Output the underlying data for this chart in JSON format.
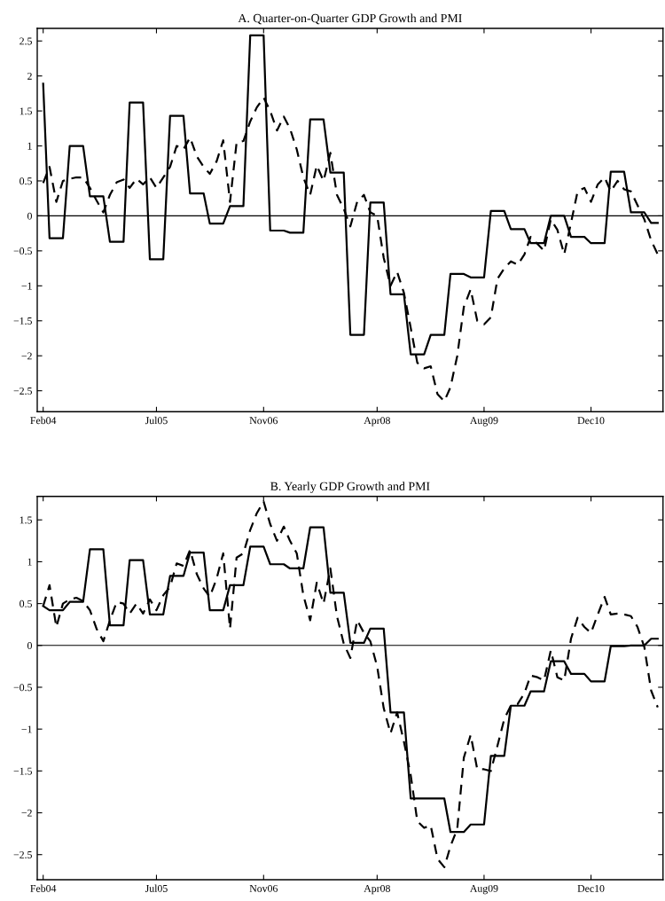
{
  "chart_data": [
    {
      "type": "line",
      "title": "A. Quarter-on-Quarter GDP Growth and PMI",
      "x": [
        "2004-02",
        "2004-03",
        "2004-04",
        "2004-05",
        "2004-06",
        "2004-07",
        "2004-08",
        "2004-09",
        "2004-10",
        "2004-11",
        "2004-12",
        "2005-01",
        "2005-02",
        "2005-03",
        "2005-04",
        "2005-05",
        "2005-06",
        "2005-07",
        "2005-08",
        "2005-09",
        "2005-10",
        "2005-11",
        "2005-12",
        "2006-01",
        "2006-02",
        "2006-03",
        "2006-04",
        "2006-05",
        "2006-06",
        "2006-07",
        "2006-08",
        "2006-09",
        "2006-10",
        "2006-11",
        "2006-12",
        "2007-01",
        "2007-02",
        "2007-03",
        "2007-04",
        "2007-05",
        "2007-06",
        "2007-07",
        "2007-08",
        "2007-09",
        "2007-10",
        "2007-11",
        "2007-12",
        "2008-01",
        "2008-02",
        "2008-03",
        "2008-04",
        "2008-05",
        "2008-06",
        "2008-07",
        "2008-08",
        "2008-09",
        "2008-10",
        "2008-11",
        "2008-12",
        "2009-01",
        "2009-02",
        "2009-03",
        "2009-04",
        "2009-05",
        "2009-06",
        "2009-07",
        "2009-08",
        "2009-09",
        "2009-10",
        "2009-11",
        "2009-12",
        "2010-01",
        "2010-02",
        "2010-03",
        "2010-04",
        "2010-05",
        "2010-06",
        "2010-07",
        "2010-08",
        "2010-09",
        "2010-10",
        "2010-11",
        "2010-12",
        "2011-01",
        "2011-02",
        "2011-03",
        "2011-04",
        "2011-05",
        "2011-06",
        "2011-07",
        "2011-08",
        "2011-09",
        "2011-10"
      ],
      "series": [
        {
          "color": "#000000",
          "line_style": "solid",
          "values": [
            1.89,
            -0.32,
            -0.32,
            -0.32,
            1.0,
            1.0,
            1.0,
            0.28,
            0.28,
            0.28,
            -0.37,
            -0.37,
            -0.37,
            1.62,
            1.62,
            1.62,
            -0.62,
            -0.62,
            -0.62,
            1.43,
            1.43,
            1.43,
            0.32,
            0.32,
            0.32,
            -0.11,
            -0.11,
            -0.11,
            0.14,
            0.14,
            0.14,
            2.58,
            2.58,
            2.58,
            -0.21,
            -0.21,
            -0.21,
            -0.24,
            -0.24,
            -0.24,
            1.38,
            1.38,
            1.38,
            0.62,
            0.62,
            0.62,
            -1.7,
            -1.7,
            -1.7,
            0.19,
            0.19,
            0.19,
            -1.12,
            -1.12,
            -1.12,
            -1.98,
            -1.98,
            -1.98,
            -1.7,
            -1.7,
            -1.7,
            -0.83,
            -0.83,
            -0.83,
            -0.88,
            -0.88,
            -0.88,
            0.07,
            0.07,
            0.07,
            -0.19,
            -0.19,
            -0.19,
            -0.39,
            -0.39,
            -0.39,
            0.0,
            0.0,
            0.0,
            -0.3,
            -0.3,
            -0.3,
            -0.39,
            -0.39,
            -0.39,
            0.63,
            0.63,
            0.63,
            0.05,
            0.05,
            0.05,
            -0.1,
            -0.1
          ]
        },
        {
          "color": "#000000",
          "line_style": "dashed",
          "values": [
            0.47,
            0.7,
            0.2,
            0.5,
            0.53,
            0.55,
            0.55,
            0.4,
            0.22,
            0.05,
            0.3,
            0.48,
            0.52,
            0.4,
            0.53,
            0.45,
            0.55,
            0.4,
            0.55,
            0.7,
            1.0,
            0.95,
            1.12,
            0.85,
            0.7,
            0.6,
            0.78,
            1.08,
            0.2,
            1.05,
            1.07,
            1.35,
            1.55,
            1.69,
            1.5,
            1.22,
            1.42,
            1.25,
            0.95,
            0.55,
            0.3,
            0.72,
            0.5,
            0.9,
            0.3,
            0.1,
            -0.15,
            0.2,
            0.3,
            0.05,
            0.0,
            -0.6,
            -1.0,
            -0.8,
            -1.1,
            -1.6,
            -2.1,
            -2.18,
            -2.15,
            -2.55,
            -2.65,
            -2.45,
            -2.0,
            -1.3,
            -1.05,
            -1.5,
            -1.55,
            -1.45,
            -0.9,
            -0.75,
            -0.65,
            -0.7,
            -0.55,
            -0.3,
            -0.4,
            -0.5,
            -0.05,
            -0.2,
            -0.55,
            -0.1,
            0.35,
            0.4,
            0.2,
            0.45,
            0.55,
            0.35,
            0.5,
            0.38,
            0.35,
            0.15,
            -0.05,
            -0.35,
            -0.55
          ]
        }
      ],
      "xlim": [
        "2004-01-05",
        "2011-10-25"
      ],
      "xticks": [
        {
          "value": "2004-02",
          "label": "Feb04"
        },
        {
          "value": "2005-07",
          "label": "Jul05"
        },
        {
          "value": "2006-11",
          "label": "Nov06"
        },
        {
          "value": "2008-04",
          "label": "Apr08"
        },
        {
          "value": "2009-08",
          "label": "Aug09"
        },
        {
          "value": "2010-12",
          "label": "Dec10"
        }
      ],
      "ylim": [
        -2.8,
        2.68
      ],
      "yticks": [
        {
          "value": -2.5,
          "label": "−2.5"
        },
        {
          "value": -2,
          "label": "−2"
        },
        {
          "value": -1.5,
          "label": "−1.5"
        },
        {
          "value": -1,
          "label": "−1"
        },
        {
          "value": -0.5,
          "label": "−0.5"
        },
        0,
        0.5,
        1,
        1.5,
        2,
        2.5
      ],
      "ref_lines": [
        {
          "axis": "y",
          "value": 0,
          "color": "#000000"
        }
      ]
    },
    {
      "type": "line",
      "title": "B. Yearly GDP Growth and PMI",
      "x": [
        "2004-02",
        "2004-03",
        "2004-04",
        "2004-05",
        "2004-06",
        "2004-07",
        "2004-08",
        "2004-09",
        "2004-10",
        "2004-11",
        "2004-12",
        "2005-01",
        "2005-02",
        "2005-03",
        "2005-04",
        "2005-05",
        "2005-06",
        "2005-07",
        "2005-08",
        "2005-09",
        "2005-10",
        "2005-11",
        "2005-12",
        "2006-01",
        "2006-02",
        "2006-03",
        "2006-04",
        "2006-05",
        "2006-06",
        "2006-07",
        "2006-08",
        "2006-09",
        "2006-10",
        "2006-11",
        "2006-12",
        "2007-01",
        "2007-02",
        "2007-03",
        "2007-04",
        "2007-05",
        "2007-06",
        "2007-07",
        "2007-08",
        "2007-09",
        "2007-10",
        "2007-11",
        "2007-12",
        "2008-01",
        "2008-02",
        "2008-03",
        "2008-04",
        "2008-05",
        "2008-06",
        "2008-07",
        "2008-08",
        "2008-09",
        "2008-10",
        "2008-11",
        "2008-12",
        "2009-01",
        "2009-02",
        "2009-03",
        "2009-04",
        "2009-05",
        "2009-06",
        "2009-07",
        "2009-08",
        "2009-09",
        "2009-10",
        "2009-11",
        "2009-12",
        "2010-01",
        "2010-02",
        "2010-03",
        "2010-04",
        "2010-05",
        "2010-06",
        "2010-07",
        "2010-08",
        "2010-09",
        "2010-10",
        "2010-11",
        "2010-12",
        "2011-01",
        "2011-02",
        "2011-03",
        "2011-04",
        "2011-05",
        "2011-06",
        "2011-07",
        "2011-08",
        "2011-09",
        "2011-10"
      ],
      "series": [
        {
          "color": "#000000",
          "line_style": "solid",
          "values": [
            0.47,
            0.42,
            0.42,
            0.42,
            0.52,
            0.52,
            0.52,
            1.15,
            1.15,
            1.15,
            0.24,
            0.24,
            0.24,
            1.02,
            1.02,
            1.02,
            0.37,
            0.37,
            0.37,
            0.83,
            0.83,
            0.83,
            1.11,
            1.11,
            1.11,
            0.42,
            0.42,
            0.42,
            0.72,
            0.72,
            0.72,
            1.18,
            1.18,
            1.18,
            0.97,
            0.97,
            0.97,
            0.92,
            0.92,
            0.92,
            1.41,
            1.41,
            1.41,
            0.63,
            0.63,
            0.63,
            0.03,
            0.03,
            0.03,
            0.2,
            0.2,
            0.2,
            -0.8,
            -0.8,
            -0.8,
            -1.83,
            -1.83,
            -1.83,
            -1.83,
            -1.83,
            -1.83,
            -2.23,
            -2.23,
            -2.23,
            -2.14,
            -2.14,
            -2.14,
            -1.32,
            -1.32,
            -1.32,
            -0.72,
            -0.72,
            -0.72,
            -0.55,
            -0.55,
            -0.55,
            -0.19,
            -0.19,
            -0.19,
            -0.34,
            -0.34,
            -0.34,
            -0.43,
            -0.43,
            -0.43,
            -0.01,
            -0.01,
            -0.01,
            0.0,
            0.0,
            0.0,
            0.08,
            0.08
          ]
        },
        {
          "color": "#000000",
          "line_style": "dashed",
          "values": [
            0.47,
            0.72,
            0.22,
            0.5,
            0.55,
            0.57,
            0.53,
            0.42,
            0.2,
            0.05,
            0.3,
            0.52,
            0.5,
            0.38,
            0.5,
            0.38,
            0.55,
            0.42,
            0.6,
            0.7,
            0.98,
            0.95,
            1.14,
            0.85,
            0.68,
            0.58,
            0.8,
            1.1,
            0.2,
            1.05,
            1.1,
            1.38,
            1.58,
            1.72,
            1.45,
            1.25,
            1.42,
            1.25,
            1.1,
            0.6,
            0.3,
            0.75,
            0.5,
            0.92,
            0.35,
            0.02,
            -0.15,
            0.3,
            0.15,
            0.05,
            -0.25,
            -0.75,
            -1.05,
            -0.8,
            -1.15,
            -1.55,
            -2.1,
            -2.18,
            -2.15,
            -2.55,
            -2.65,
            -2.4,
            -2.19,
            -1.34,
            -1.07,
            -1.48,
            -1.48,
            -1.5,
            -1.2,
            -0.88,
            -0.72,
            -0.7,
            -0.57,
            -0.36,
            -0.38,
            -0.42,
            -0.06,
            -0.38,
            -0.42,
            0.08,
            0.33,
            0.22,
            0.15,
            0.37,
            0.58,
            0.37,
            0.38,
            0.37,
            0.35,
            0.22,
            -0.02,
            -0.54,
            -0.74
          ]
        }
      ],
      "xlim": [
        "2004-01-05",
        "2011-10-25"
      ],
      "xticks": [
        {
          "value": "2004-02",
          "label": "Feb04"
        },
        {
          "value": "2005-07",
          "label": "Jul05"
        },
        {
          "value": "2006-11",
          "label": "Nov06"
        },
        {
          "value": "2008-04",
          "label": "Apr08"
        },
        {
          "value": "2009-08",
          "label": "Aug09"
        },
        {
          "value": "2010-12",
          "label": "Dec10"
        }
      ],
      "ylim": [
        -2.8,
        1.78
      ],
      "yticks": [
        {
          "value": -2.5,
          "label": "−2.5"
        },
        {
          "value": -2,
          "label": "−2"
        },
        {
          "value": -1.5,
          "label": "−1.5"
        },
        {
          "value": -1,
          "label": "−1"
        },
        {
          "value": -0.5,
          "label": "−0.5"
        },
        0,
        0.5,
        1,
        1.5
      ],
      "ref_lines": [
        {
          "axis": "y",
          "value": 0,
          "color": "#000000"
        }
      ]
    }
  ]
}
